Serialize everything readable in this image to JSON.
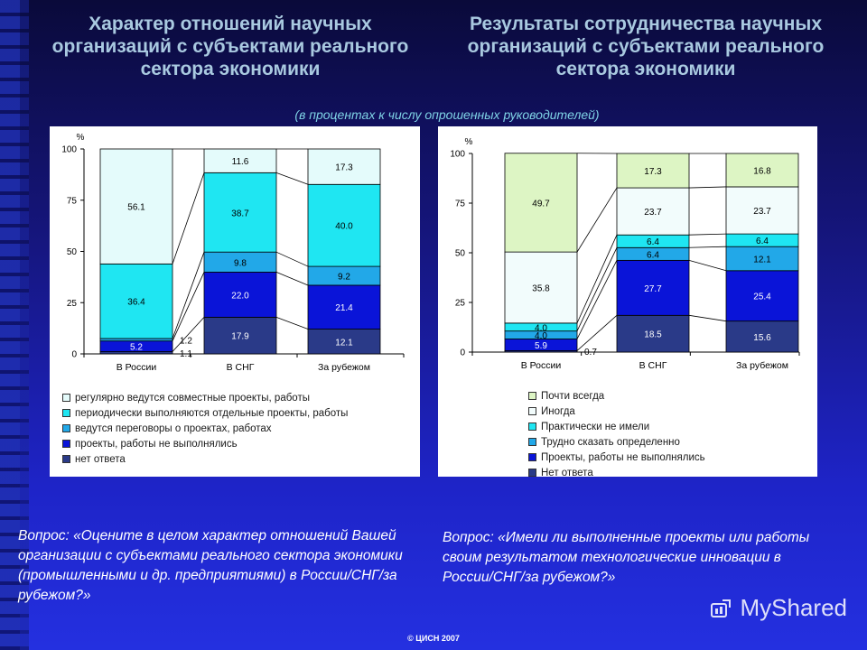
{
  "titles": {
    "left": "Характер отношений научных организаций с субъектами реального сектора экономики",
    "right": "Результаты сотрудничества научных организаций с субъектами реального сектора экономики"
  },
  "subtitle": "(в процентах к числу опрошенных руководителей)",
  "chart_data": [
    {
      "type": "bar",
      "stacked": true,
      "ylabel": "%",
      "ylim": [
        0,
        100
      ],
      "yticks": [
        0,
        25,
        50,
        75,
        100
      ],
      "categories": [
        "В России",
        "В СНГ",
        "За рубежом"
      ],
      "series": [
        {
          "name": "нет ответа",
          "color": "#2a3a88",
          "values": [
            1.1,
            17.9,
            12.1
          ],
          "labels": [
            "1.1",
            "17.9",
            "12.1"
          ]
        },
        {
          "name": "проекты, работы не выполнялись",
          "color": "#0a14d8",
          "values": [
            5.2,
            22.0,
            21.4
          ],
          "labels": [
            "5.2",
            "22.0",
            "21.4"
          ]
        },
        {
          "name": "ведутся переговоры о проектах, работах",
          "color": "#22a8e8",
          "values": [
            1.2,
            9.8,
            9.2
          ],
          "labels": [
            "1.2",
            "9.8",
            "9.2"
          ]
        },
        {
          "name": "периодически выполняются отдельные проекты, работы",
          "color": "#1fe6f2",
          "values": [
            36.4,
            38.7,
            40.0
          ],
          "labels": [
            "36.4",
            "38.7",
            "40.0"
          ]
        },
        {
          "name": "регулярно ведутся совместные проекты, работы",
          "color": "#e4fbfb",
          "values": [
            56.1,
            11.6,
            17.3
          ],
          "labels": [
            "56.1",
            "11.6",
            "17.3"
          ]
        }
      ]
    },
    {
      "type": "bar",
      "stacked": true,
      "ylabel": "%",
      "ylim": [
        0,
        100
      ],
      "yticks": [
        0,
        25,
        50,
        75,
        100
      ],
      "categories": [
        "В России",
        "В СНГ",
        "За рубежом"
      ],
      "series": [
        {
          "name": "Нет ответа",
          "color": "#2a3a88",
          "values": [
            0.7,
            18.5,
            15.6
          ],
          "labels": [
            "0.7",
            "18.5",
            "15.6"
          ]
        },
        {
          "name": "Проекты, работы не выполнялись",
          "color": "#0a14d8",
          "values": [
            5.9,
            27.7,
            25.4
          ],
          "labels": [
            "5.9",
            "27.7",
            "25.4"
          ]
        },
        {
          "name": "Трудно сказать определенно",
          "color": "#22a8e8",
          "values": [
            4.0,
            6.4,
            12.1
          ],
          "labels": [
            "4.0",
            "6.4",
            "12.1"
          ]
        },
        {
          "name": "Практически не имели",
          "color": "#1fe6f2",
          "values": [
            4.0,
            6.4,
            6.4
          ],
          "labels": [
            "4.0",
            "6.4",
            "6.4"
          ]
        },
        {
          "name": "Иногда",
          "color": "#f2fcfc",
          "values": [
            35.8,
            23.7,
            23.7
          ],
          "labels": [
            "35.8",
            "23.7",
            "23.7"
          ]
        },
        {
          "name": "Почти всегда",
          "color": "#ddf5c4",
          "values": [
            49.7,
            17.3,
            16.8
          ],
          "labels": [
            "49.7",
            "17.3",
            "16.8"
          ]
        }
      ]
    }
  ],
  "legend_left": [
    "регулярно ведутся совместные проекты, работы",
    "периодически выполняются отдельные проекты, работы",
    "ведутся переговоры о проектах, работах",
    "проекты, работы не выполнялись",
    "нет ответа"
  ],
  "legend_right": [
    "Почти всегда",
    "Иногда",
    "Практически не имели",
    "Трудно сказать определенно",
    "Проекты, работы не выполнялись",
    "Нет ответа"
  ],
  "questions": {
    "left_label": "Вопрос:",
    "left_text": "«Оцените в целом характер отношений Вашей организации с субъектами реального сектора экономики (промышленными и др. предприятиями) в России/СНГ/за рубежом?»",
    "right_label": "Вопрос:",
    "right_text": "«Имели ли выполненные проекты или работы своим результатом технологические инновации в России/СНГ/за рубежом?»"
  },
  "footer": "© ЦИСН 2007",
  "watermark": "MyShared"
}
